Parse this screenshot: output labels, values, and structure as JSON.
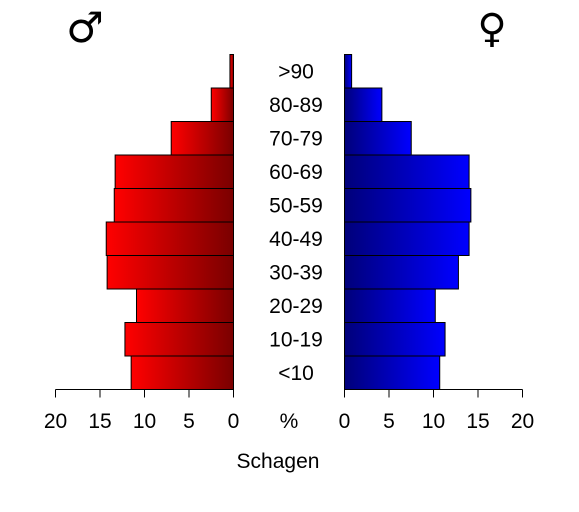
{
  "chart_data": {
    "type": "bar",
    "title": "",
    "xlabel": "Schagen",
    "unit_label": "%",
    "male_symbol": "♂",
    "female_symbol": "♀",
    "categories": [
      "<10",
      "10-19",
      "20-29",
      "30-39",
      "40-49",
      "50-59",
      "60-69",
      "70-79",
      "80-89",
      ">90"
    ],
    "series": [
      {
        "values": [
          11.5,
          12.2,
          10.9,
          14.2,
          14.3,
          13.4,
          13.3,
          7.0,
          2.5,
          0.4
        ]
      },
      {
        "values": [
          10.7,
          11.3,
          10.2,
          12.8,
          14.0,
          14.2,
          14.0,
          7.5,
          4.2,
          0.8
        ]
      }
    ],
    "ticks": [
      20,
      15,
      10,
      5,
      0
    ],
    "xlim": [
      0,
      20
    ],
    "colors": {
      "male_dark": "#7a0000",
      "male_light": "#ff0000",
      "female_dark": "#00007a",
      "female_light": "#0000ff"
    }
  }
}
